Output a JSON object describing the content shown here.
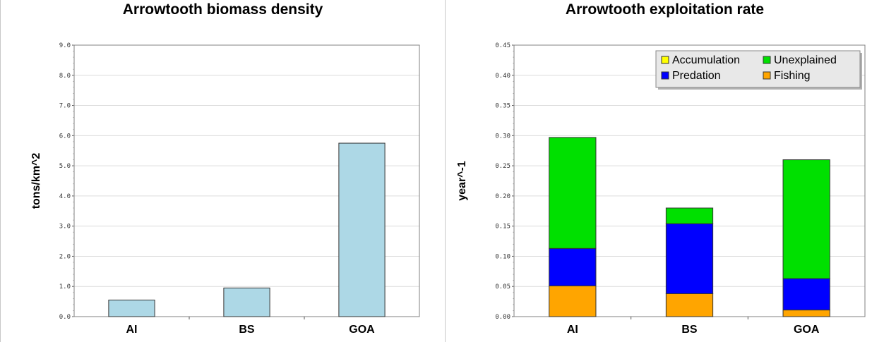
{
  "chart_data": [
    {
      "type": "bar",
      "title": "Arrowtooth biomass density",
      "xlabel": "",
      "ylabel": "tons/km^2",
      "categories": [
        "AI",
        "BS",
        "GOA"
      ],
      "values": [
        0.55,
        0.95,
        5.75
      ],
      "ylim": [
        0,
        9
      ],
      "yticks": [
        "0.0",
        "1.0",
        "2.0",
        "3.0",
        "4.0",
        "5.0",
        "6.0",
        "7.0",
        "8.0",
        "9.0"
      ],
      "grid": true,
      "colors": {
        "bar": "#add8e6"
      }
    },
    {
      "type": "bar",
      "stacked": true,
      "title": "Arrowtooth exploitation rate",
      "xlabel": "",
      "ylabel": "year^-1",
      "categories": [
        "AI",
        "BS",
        "GOA"
      ],
      "ylim": [
        0,
        0.45
      ],
      "yticks": [
        "0.00",
        "0.05",
        "0.10",
        "0.15",
        "0.20",
        "0.25",
        "0.30",
        "0.35",
        "0.40",
        "0.45"
      ],
      "grid": true,
      "legend_position": "top-right",
      "series": [
        {
          "name": "Fishing",
          "color": "#ffa500",
          "values": [
            0.051,
            0.038,
            0.011
          ]
        },
        {
          "name": "Predation",
          "color": "#0000ff",
          "values": [
            0.062,
            0.116,
            0.052
          ]
        },
        {
          "name": "Unexplained",
          "color": "#00e000",
          "values": [
            0.184,
            0.026,
            0.197
          ]
        },
        {
          "name": "Accumulation",
          "color": "#ffff00",
          "values": [
            0,
            0,
            0
          ]
        }
      ],
      "legend_order": [
        "Accumulation",
        "Unexplained",
        "Predation",
        "Fishing"
      ]
    }
  ]
}
